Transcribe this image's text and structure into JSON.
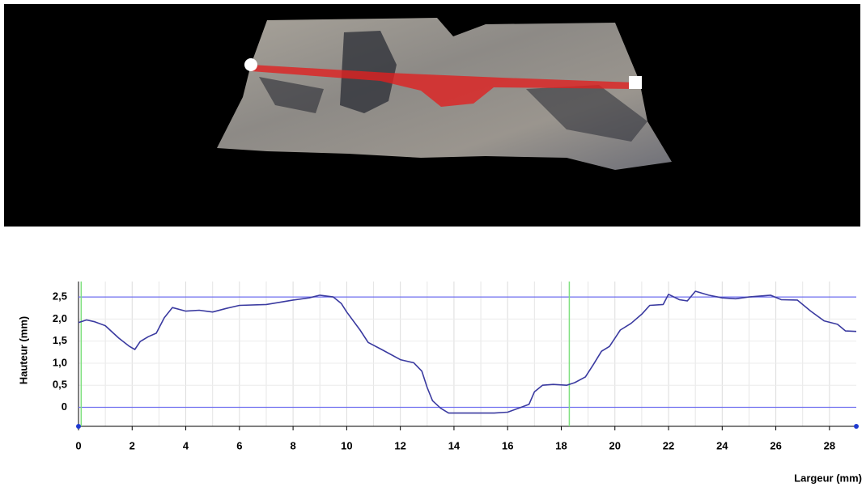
{
  "chart_data": {
    "type": "line",
    "y_label": "Hauteur (mm)",
    "x_label": "Largeur (mm)",
    "xlim": [
      0,
      29
    ],
    "ylim": [
      -0.43,
      2.85
    ],
    "xticks": [
      0,
      2,
      4,
      6,
      8,
      10,
      12,
      14,
      16,
      18,
      20,
      22,
      24,
      26,
      28
    ],
    "yticks": [
      0,
      {
        "value": 0.5,
        "label": "0,5"
      },
      {
        "value": 1.0,
        "label": "1,0"
      },
      {
        "value": 1.5,
        "label": "1,5"
      },
      {
        "value": 2.0,
        "label": "2,0"
      },
      {
        "value": 2.5,
        "label": "2,5"
      }
    ],
    "grid": true,
    "hlines": {
      "color": "#6f6ff0",
      "values": [
        0,
        2.5
      ]
    },
    "vlines": {
      "color": "#7fe07f",
      "values": [
        0.1,
        18.3
      ]
    },
    "x": [
      0,
      0.3,
      0.6,
      1.0,
      1.5,
      1.9,
      2.1,
      2.3,
      2.6,
      2.9,
      3.2,
      3.5,
      4.0,
      4.5,
      5.0,
      5.5,
      6.0,
      7.0,
      8.0,
      8.6,
      9.0,
      9.5,
      9.8,
      10.0,
      10.5,
      10.8,
      11.3,
      12.0,
      12.5,
      12.8,
      13.0,
      13.2,
      13.5,
      13.8,
      14.5,
      15.5,
      16.0,
      16.5,
      16.8,
      17.0,
      17.3,
      17.7,
      18.2,
      18.5,
      18.9,
      19.2,
      19.5,
      19.8,
      20.2,
      20.6,
      21.0,
      21.3,
      21.8,
      22.0,
      22.4,
      22.7,
      23.0,
      23.5,
      24.0,
      24.5,
      25.0,
      25.8,
      26.2,
      26.8,
      27.3,
      27.8,
      28.3,
      28.6,
      29.0
    ],
    "series": [
      {
        "color": "#3a3aa0",
        "values": [
          1.92,
          1.98,
          1.94,
          1.85,
          1.57,
          1.38,
          1.31,
          1.49,
          1.6,
          1.68,
          2.03,
          2.26,
          2.18,
          2.2,
          2.16,
          2.24,
          2.31,
          2.33,
          2.43,
          2.48,
          2.54,
          2.5,
          2.35,
          2.16,
          1.75,
          1.47,
          1.31,
          1.08,
          1.01,
          0.82,
          0.45,
          0.15,
          -0.02,
          -0.13,
          -0.13,
          -0.13,
          -0.11,
          0,
          0.07,
          0.35,
          0.5,
          0.52,
          0.5,
          0.56,
          0.69,
          0.97,
          1.27,
          1.38,
          1.75,
          1.9,
          2.11,
          2.31,
          2.33,
          2.56,
          2.44,
          2.41,
          2.63,
          2.54,
          2.48,
          2.46,
          2.5,
          2.54,
          2.44,
          2.43,
          2.18,
          1.96,
          1.88,
          1.73,
          1.72
        ]
      }
    ]
  }
}
